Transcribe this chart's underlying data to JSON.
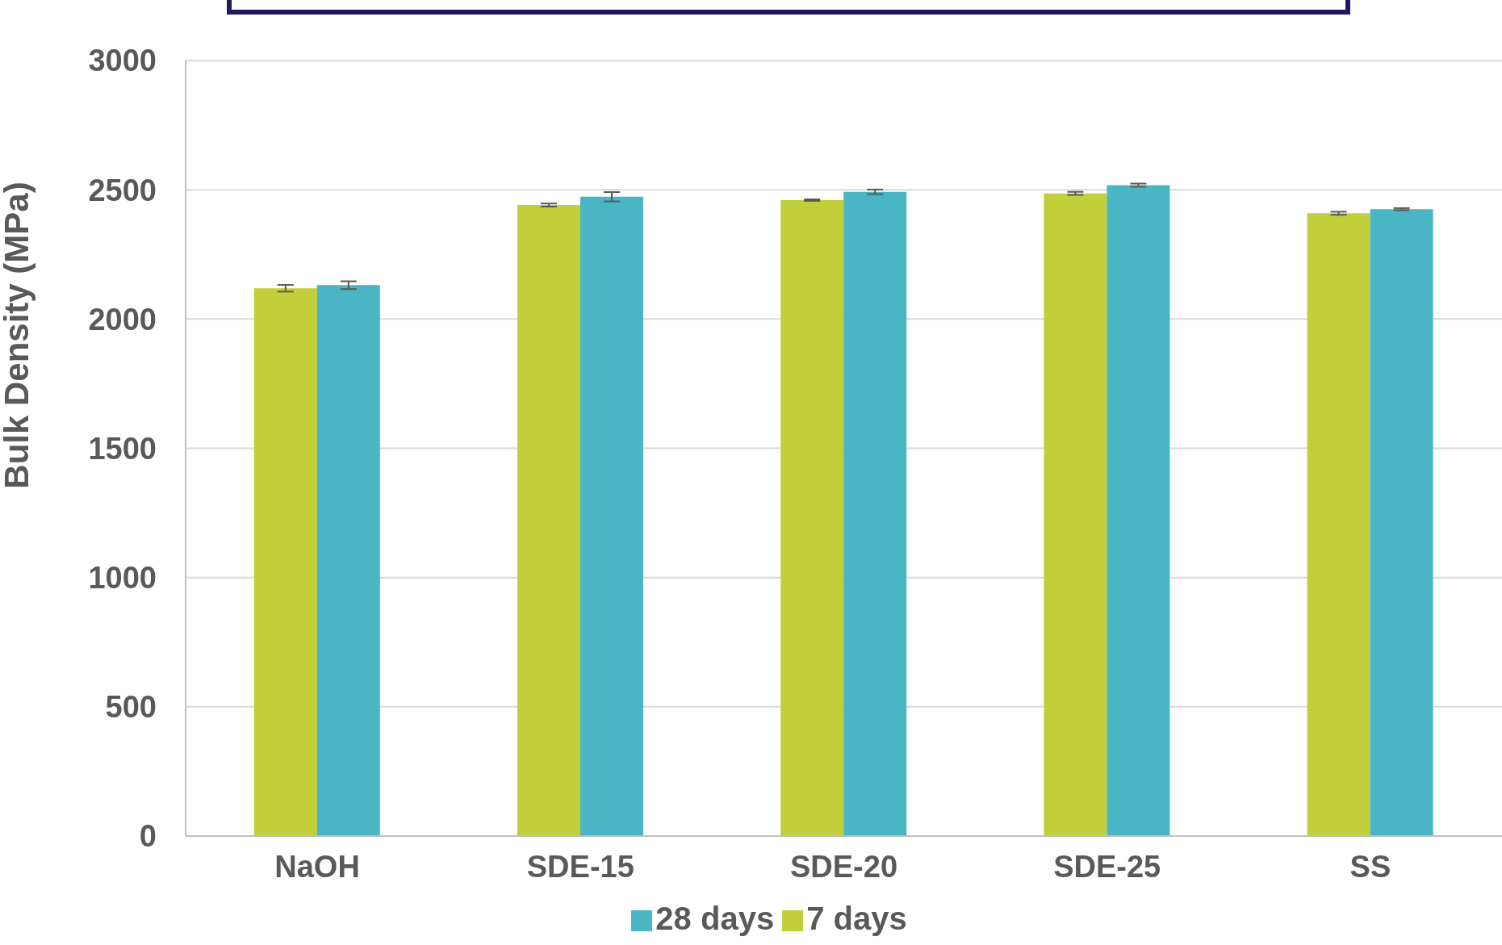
{
  "chart_data": {
    "type": "bar",
    "ylabel": "Bulk Density (MPa)",
    "categories": [
      "NaOH",
      "SDE-15",
      "SDE-20",
      "SDE-25",
      "SS"
    ],
    "series": [
      {
        "name": "7 days",
        "color": "#c0cf3a",
        "values": [
          2119,
          2441,
          2460,
          2486,
          2409
        ],
        "errors": [
          13,
          6,
          3,
          6,
          6
        ]
      },
      {
        "name": "28 days",
        "color": "#4ab5c4",
        "values": [
          2131,
          2473,
          2492,
          2518,
          2425
        ],
        "errors": [
          15,
          18,
          9,
          6,
          4
        ]
      }
    ],
    "ylim": [
      0,
      3000
    ],
    "yticks": [
      0,
      500,
      1000,
      1500,
      2000,
      2500,
      3000
    ],
    "grid": "y",
    "legend": "bottom"
  }
}
